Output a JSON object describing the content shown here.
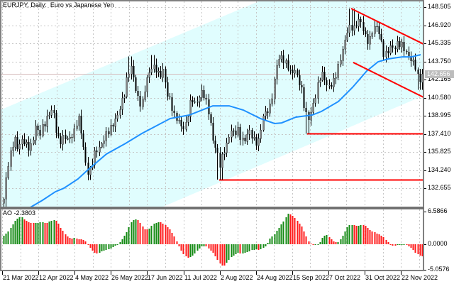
{
  "window": {
    "title": "EURJPY, Daily:  Euro vs Japanese Yen"
  },
  "price_axis": {
    "labels": [
      "148.505",
      "146.920",
      "145.335",
      "143.750",
      "142.165",
      "140.580",
      "138.995",
      "137.410",
      "135.825",
      "134.240",
      "132.655"
    ],
    "current_price": "142.656"
  },
  "indicator_panel": {
    "label": "AO -2.3803",
    "axis_labels": [
      "6.5866",
      "0.0000",
      "-5.0576"
    ]
  },
  "time_axis": {
    "labels": [
      "21 Mar 2022",
      "12 Apr 2022",
      "4 May 2022",
      "26 May 2022",
      "17 Jun 2022",
      "11 Jul 2022",
      "2 Aug 2022",
      "24 Aug 2022",
      "15 Sep 2022",
      "7 Oct 2022",
      "31 Oct 2022",
      "22 Nov 2022"
    ]
  },
  "colors": {
    "background": "#ffffff",
    "grid": "#c6c6c6",
    "frame": "#808080",
    "bull_candle": "#858585",
    "bear_candle": "#000000",
    "wick": "#000000",
    "channel_fill": "#e0fdfe",
    "moving_average": "#1e90ff",
    "trendline": "#ff0000",
    "current_price_line": "#d6bcbc",
    "ao_up": "#138a13",
    "ao_down": "#ff1a1a"
  },
  "chart_data": {
    "type": "candlestick",
    "title": "EURJPY, Daily:  Euro vs Japanese Yen",
    "symbol": "EURJPY",
    "timeframe": "Daily",
    "xlabel": "",
    "ylabel": "",
    "x_tick_labels": [
      "21 Mar 2022",
      "12 Apr 2022",
      "4 May 2022",
      "26 May 2022",
      "17 Jun 2022",
      "11 Jul 2022",
      "2 Aug 2022",
      "24 Aug 2022",
      "15 Sep 2022",
      "7 Oct 2022",
      "31 Oct 2022",
      "22 Nov 2022"
    ],
    "y_ticks": [
      148.505,
      146.92,
      145.335,
      143.75,
      142.165,
      140.58,
      138.995,
      137.41,
      135.825,
      134.24,
      132.655
    ],
    "ylim": [
      130.98,
      149.0
    ],
    "grid": true,
    "last_price": 142.656,
    "series": [
      {
        "name": "EURJPY close (sampled ~every 1.5 sessions)",
        "values": [
          131.72,
          134.21,
          135.76,
          137.32,
          136.07,
          136.7,
          136.7,
          136.38,
          136.38,
          137.94,
          137.32,
          138.25,
          138.56,
          139.18,
          139.49,
          137.32,
          136.7,
          137.01,
          137.01,
          137.32,
          137.63,
          138.87,
          137.32,
          135.14,
          133.59,
          134.83,
          136.07,
          136.38,
          136.7,
          137.32,
          137.94,
          138.56,
          138.87,
          139.8,
          141.05,
          142.91,
          143.22,
          141.36,
          140.42,
          140.11,
          141.67,
          142.6,
          143.53,
          143.22,
          142.29,
          142.91,
          141.05,
          140.42,
          138.87,
          138.56,
          138.25,
          137.94,
          139.18,
          140.42,
          140.11,
          140.74,
          141.05,
          140.11,
          139.18,
          137.01,
          135.76,
          134.52,
          136.07,
          136.7,
          137.63,
          137.32,
          137.94,
          137.01,
          136.7,
          137.63,
          137.32,
          136.7,
          136.7,
          138.87,
          139.49,
          139.8,
          141.05,
          143.53,
          144.46,
          143.84,
          143.22,
          142.6,
          143.22,
          142.29,
          141.05,
          139.18,
          138.87,
          139.8,
          140.74,
          142.29,
          142.91,
          141.67,
          141.36,
          141.98,
          143.22,
          144.15,
          145.09,
          146.64,
          146.95,
          146.64,
          147.26,
          146.95,
          146.02,
          145.4,
          146.33,
          146.95,
          146.33,
          144.46,
          144.15,
          145.09,
          145.09,
          145.27,
          145.09,
          144.78,
          144.46,
          143.84,
          143.22,
          141.98,
          142.656
        ]
      },
      {
        "name": "Moving Average",
        "points": [
          [
            7.6,
            130.98
          ],
          [
            11,
            131.6
          ],
          [
            14.6,
            132.34
          ],
          [
            17,
            132.65
          ],
          [
            21,
            133.46
          ],
          [
            23.6,
            134.21
          ],
          [
            29,
            135.64
          ],
          [
            34.4,
            136.57
          ],
          [
            39,
            137.44
          ],
          [
            47,
            138.75
          ],
          [
            52.4,
            139.06
          ],
          [
            57,
            139.62
          ],
          [
            59,
            139.86
          ],
          [
            63.6,
            139.86
          ],
          [
            67.6,
            139.49
          ],
          [
            72.4,
            138.75
          ],
          [
            76.4,
            138.31
          ],
          [
            78.4,
            138.37
          ],
          [
            82.4,
            138.87
          ],
          [
            87,
            139.06
          ],
          [
            89.6,
            139.37
          ],
          [
            94.4,
            140.24
          ],
          [
            98.4,
            141.48
          ],
          [
            102.4,
            142.91
          ],
          [
            105.6,
            143.72
          ],
          [
            108.4,
            143.97
          ],
          [
            112.4,
            144.15
          ],
          [
            115,
            144.15
          ],
          [
            117.6,
            144.34
          ]
        ]
      }
    ],
    "extremes": [
      {
        "index": 0,
        "low": 131.0
      },
      {
        "index": 35.6,
        "high": 144.2
      },
      {
        "index": 42,
        "high": 144.3
      },
      {
        "index": 60.8,
        "low": 133.4
      },
      {
        "index": 85.6,
        "low": 137.41
      },
      {
        "index": 98,
        "high": 148.38
      },
      {
        "index": 117.4,
        "low": 141.25
      }
    ],
    "overlays": {
      "regression_channel": {
        "upper": [
          [
            -1,
            139.49
          ],
          [
            118.4,
            155.07
          ]
        ],
        "lower": [
          [
            -1,
            124.95
          ],
          [
            118.4,
            140.75
          ]
        ]
      },
      "trendlines": [
        {
          "name": "falling-channel-upper",
          "from": [
            98,
            148.38
          ],
          "to": [
            118.4,
            145.27
          ]
        },
        {
          "name": "falling-channel-lower",
          "from": [
            98.6,
            143.66
          ],
          "to": [
            118.4,
            140.61
          ]
        }
      ],
      "horizontal_lines": [
        {
          "name": "support-137-410",
          "price": 137.41,
          "from_index": 85.6
        },
        {
          "name": "support-133-40",
          "price": 133.4,
          "from_index": 60.8
        }
      ]
    },
    "indicator": {
      "name": "AO",
      "current": -2.3803,
      "ylim": [
        -5.0576,
        6.5866
      ],
      "values": [
        1.71,
        2.39,
        3.41,
        4.49,
        5.37,
        5.56,
        4.88,
        4.54,
        4.29,
        4.29,
        4.39,
        4.44,
        4.29,
        4.63,
        4.98,
        4.63,
        3.41,
        2.34,
        1.56,
        1.22,
        1.37,
        1.12,
        0.98,
        0.73,
        -0.24,
        -1.22,
        -1.85,
        -1.56,
        -1.22,
        -1.07,
        -0.88,
        -0.49,
        0.0,
        0.73,
        1.71,
        2.93,
        4.63,
        5.12,
        4.78,
        3.66,
        2.83,
        3.17,
        4.0,
        4.39,
        4.49,
        4.15,
        3.66,
        2.93,
        1.71,
        0.24,
        -1.22,
        -2.2,
        -2.68,
        -2.44,
        -1.71,
        -0.88,
        -0.24,
        -0.39,
        -0.98,
        -1.71,
        -2.68,
        -3.9,
        -4.39,
        -3.56,
        -2.59,
        -2.1,
        -1.61,
        -1.85,
        -1.61,
        -1.37,
        -1.12,
        -0.98,
        -1.12,
        -0.78,
        -0.15,
        1.17,
        1.8,
        2.78,
        3.76,
        4.73,
        6.2,
        5.95,
        5.37,
        4.59,
        3.61,
        2.05,
        0.59,
        -0.15,
        -0.15,
        0.34,
        1.66,
        1.9,
        1.32,
        0.59,
        0.34,
        1.07,
        2.29,
        3.76,
        3.9,
        3.8,
        3.8,
        4.0,
        3.76,
        3.02,
        2.63,
        2.29,
        2.05,
        1.56,
        0.68,
        0.0,
        -0.29,
        -0.1,
        0.0,
        0.0,
        -0.29,
        -0.78,
        -1.61,
        -2.1,
        -2.3803
      ]
    }
  }
}
